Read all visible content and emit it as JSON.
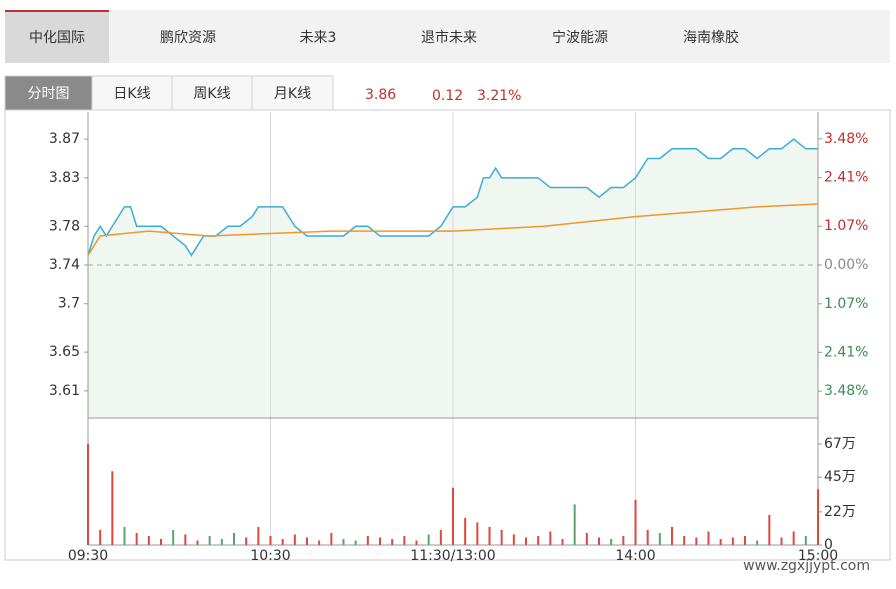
{
  "tabs": [
    "中化国际",
    "鹏欣资源",
    "未来3",
    "退市未来",
    "宁波能源",
    "海南橡胶"
  ],
  "chart_tabs": [
    "分时图",
    "日K线",
    "周K线",
    "月K线"
  ],
  "quote": {
    "price": 3.86,
    "change": 0.12,
    "change_pct": "3.21%"
  },
  "watermark": "www.zgxjjypt.com",
  "chart_data": {
    "type": "line",
    "xlim": [
      0,
      240
    ],
    "xticks": [
      {
        "value": 0,
        "label": "09:30"
      },
      {
        "value": 60,
        "label": "10:30"
      },
      {
        "value": 120,
        "label": "11:30/13:00"
      },
      {
        "value": 180,
        "label": "14:00"
      },
      {
        "value": 240,
        "label": "15:00"
      }
    ],
    "ylim": [
      3.582,
      3.898
    ],
    "yticks": [
      3.87,
      3.83,
      3.78,
      3.74,
      3.7,
      3.65,
      3.61
    ],
    "baseline": 3.74,
    "y2lim": [
      -4.22,
      4.22
    ],
    "y2ticks": [
      {
        "value": 3.48,
        "label": "3.48%"
      },
      {
        "value": 2.41,
        "label": "2.41%"
      },
      {
        "value": 1.07,
        "label": "1.07%"
      },
      {
        "value": 0,
        "label": "0.00%"
      },
      {
        "value": -1.07,
        "label": "1.07%"
      },
      {
        "value": -2.41,
        "label": "2.41%"
      },
      {
        "value": -3.48,
        "label": "3.48%"
      }
    ],
    "series": [
      {
        "name": "price",
        "color": "#3aaed4",
        "x": [
          0,
          2,
          4,
          6,
          8,
          12,
          14,
          16,
          20,
          24,
          28,
          32,
          34,
          38,
          42,
          46,
          50,
          54,
          56,
          60,
          64,
          68,
          72,
          76,
          80,
          84,
          88,
          92,
          96,
          100,
          104,
          108,
          112,
          116,
          120,
          124,
          128,
          130,
          132,
          134,
          136,
          140,
          148,
          152,
          156,
          160,
          164,
          168,
          172,
          176,
          180,
          184,
          188,
          192,
          200,
          204,
          208,
          212,
          216,
          220,
          224,
          228,
          232,
          236,
          240
        ],
        "values": [
          3.75,
          3.77,
          3.78,
          3.77,
          3.78,
          3.8,
          3.8,
          3.78,
          3.78,
          3.78,
          3.77,
          3.76,
          3.75,
          3.77,
          3.77,
          3.78,
          3.78,
          3.79,
          3.8,
          3.8,
          3.8,
          3.78,
          3.77,
          3.77,
          3.77,
          3.77,
          3.78,
          3.78,
          3.77,
          3.77,
          3.77,
          3.77,
          3.77,
          3.78,
          3.8,
          3.8,
          3.81,
          3.83,
          3.83,
          3.84,
          3.83,
          3.83,
          3.83,
          3.82,
          3.82,
          3.82,
          3.82,
          3.81,
          3.82,
          3.82,
          3.83,
          3.85,
          3.85,
          3.86,
          3.86,
          3.85,
          3.85,
          3.86,
          3.86,
          3.85,
          3.86,
          3.86,
          3.87,
          3.86,
          3.86
        ]
      },
      {
        "name": "average",
        "color": "#f0962c",
        "x": [
          0,
          4,
          20,
          40,
          80,
          120,
          150,
          180,
          200,
          220,
          240
        ],
        "values": [
          3.75,
          3.77,
          3.775,
          3.77,
          3.775,
          3.775,
          3.78,
          3.79,
          3.795,
          3.8,
          3.803
        ]
      }
    ],
    "volume": {
      "up_color": "#e0473d",
      "down_color": "#5aa36f",
      "x": [
        0,
        4,
        8,
        12,
        16,
        20,
        24,
        28,
        32,
        36,
        40,
        44,
        48,
        52,
        56,
        60,
        64,
        68,
        72,
        76,
        80,
        84,
        88,
        92,
        96,
        100,
        104,
        108,
        112,
        116,
        120,
        124,
        128,
        132,
        136,
        140,
        144,
        148,
        152,
        156,
        160,
        164,
        168,
        172,
        176,
        180,
        184,
        188,
        192,
        196,
        200,
        204,
        208,
        212,
        216,
        220,
        224,
        228,
        232,
        236,
        240
      ],
      "values": [
        67,
        10,
        49,
        12,
        8,
        6,
        4,
        10,
        7,
        3,
        6,
        4,
        8,
        5,
        12,
        6,
        4,
        7,
        5,
        3,
        8,
        4,
        3,
        6,
        5,
        4,
        6,
        3,
        7,
        10,
        38,
        18,
        15,
        12,
        10,
        7,
        5,
        6,
        9,
        4,
        27,
        8,
        5,
        4,
        6,
        30,
        10,
        8,
        12,
        6,
        5,
        9,
        4,
        5,
        6,
        3,
        20,
        5,
        9,
        6,
        37
      ],
      "ylim": [
        0,
        83
      ],
      "yticks": [
        {
          "value": 67,
          "label": "67万"
        },
        {
          "value": 45,
          "label": "45万"
        },
        {
          "value": 22,
          "label": "22万"
        },
        0
      ]
    }
  }
}
